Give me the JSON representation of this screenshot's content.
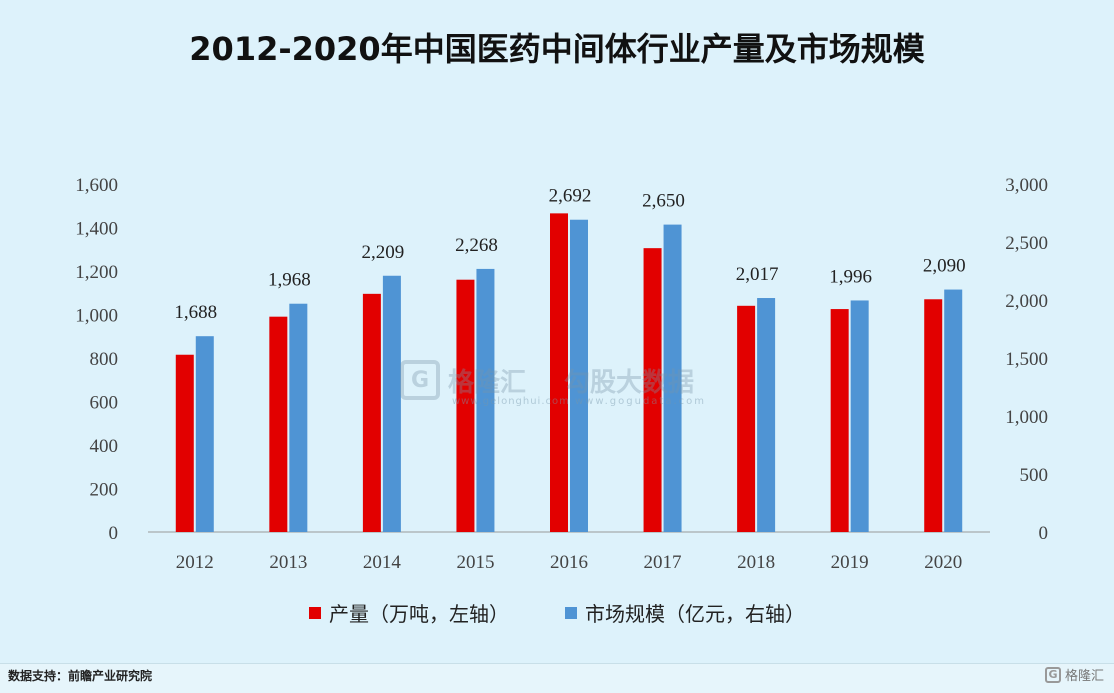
{
  "title": "2012-2020年中国医药中间体行业产量及市场规模",
  "source": "数据支持：前瞻产业研究院",
  "logo_text": "格隆汇",
  "watermark": {
    "brand": "格隆汇",
    "brand_url": "www.gelonghui.com",
    "partner": "勾股大数据",
    "partner_url": "www.gogudata.com"
  },
  "colors": {
    "production": "#e20000",
    "market": "#4f94d4",
    "background": "#ddf2fb"
  },
  "chart_data": {
    "type": "bar",
    "categories": [
      "2012",
      "2013",
      "2014",
      "2015",
      "2016",
      "2017",
      "2018",
      "2019",
      "2020"
    ],
    "series": [
      {
        "name": "产量（万吨，左轴）",
        "axis": "left",
        "values": [
          815,
          990,
          1095,
          1160,
          1465,
          1305,
          1040,
          1025,
          1070
        ]
      },
      {
        "name": "市场规模（亿元，右轴）",
        "axis": "right",
        "values": [
          1688,
          1968,
          2209,
          2268,
          2692,
          2650,
          2017,
          1996,
          2090
        ],
        "labels": [
          "1,688",
          "1,968",
          "2,209",
          "2,268",
          "2,692",
          "2,650",
          "2,017",
          "1,996",
          "2,090"
        ]
      }
    ],
    "left_axis": {
      "ylim": [
        0,
        1600
      ],
      "ticks": [
        "0",
        "200",
        "400",
        "600",
        "800",
        "1,000",
        "1,200",
        "1,400",
        "1,600"
      ]
    },
    "right_axis": {
      "ylim": [
        0,
        3000
      ],
      "ticks": [
        "0",
        "500",
        "1,000",
        "1,500",
        "2,000",
        "2,500",
        "3,000"
      ]
    },
    "legend_position": "bottom",
    "grid": false
  }
}
